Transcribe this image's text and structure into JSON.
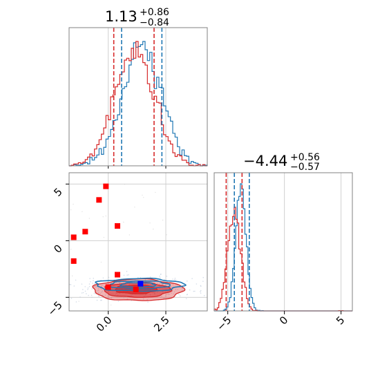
{
  "chart_data": {
    "type": "corner",
    "colors": {
      "series_a": "#1f77b4",
      "series_b": "#d62728",
      "marker_red": "#ff0000",
      "marker_blue": "#0000ff",
      "grid": "#d0d0d0"
    },
    "series": [
      {
        "color": "#1f77b4"
      },
      {
        "color": "#d62728"
      }
    ],
    "parameters": [
      {
        "title": {
          "median": "1.13",
          "plus": "+0.86",
          "minus": "−0.84"
        },
        "range": [
          -1.7,
          4.3
        ],
        "ticks": [
          0.0,
          2.5
        ],
        "tick_labels": [
          "0.0",
          "2.5"
        ],
        "quantiles": {
          "series_a": [
            0.58,
            2.33
          ],
          "series_b": [
            0.24,
            1.99
          ]
        }
      },
      {
        "title": {
          "median": "−4.44",
          "plus": "+0.56",
          "minus": "−0.57"
        },
        "range": [
          -6.2,
          6.0
        ],
        "ticks": [
          -5,
          0,
          5
        ],
        "tick_labels": [
          "−5",
          "0",
          "5"
        ],
        "quantiles": {
          "series_a": [
            -4.42,
            -3.1
          ],
          "series_b": [
            -5.14,
            -3.74
          ]
        }
      }
    ],
    "joint": {
      "x_range": [
        -1.7,
        4.3
      ],
      "y_range": [
        -6.2,
        6.0
      ],
      "x_ticks": [
        0.0,
        2.5
      ],
      "x_tick_labels": [
        "0.0",
        "2.5"
      ],
      "y_ticks": [
        -5,
        0,
        5
      ],
      "y_tick_labels": [
        "−5",
        "0",
        "5"
      ],
      "markers_red": [
        {
          "x": -0.1,
          "y": 4.8
        },
        {
          "x": -0.4,
          "y": 3.6
        },
        {
          "x": 0.4,
          "y": 1.3
        },
        {
          "x": -1.0,
          "y": 0.8
        },
        {
          "x": -1.5,
          "y": 0.3
        },
        {
          "x": -1.5,
          "y": -1.8
        },
        {
          "x": 0.4,
          "y": -3.0
        },
        {
          "x": 0.0,
          "y": -4.1
        },
        {
          "x": 1.2,
          "y": -4.3
        }
      ],
      "markers_blue": [
        {
          "x": 1.4,
          "y": -3.8
        }
      ]
    }
  }
}
